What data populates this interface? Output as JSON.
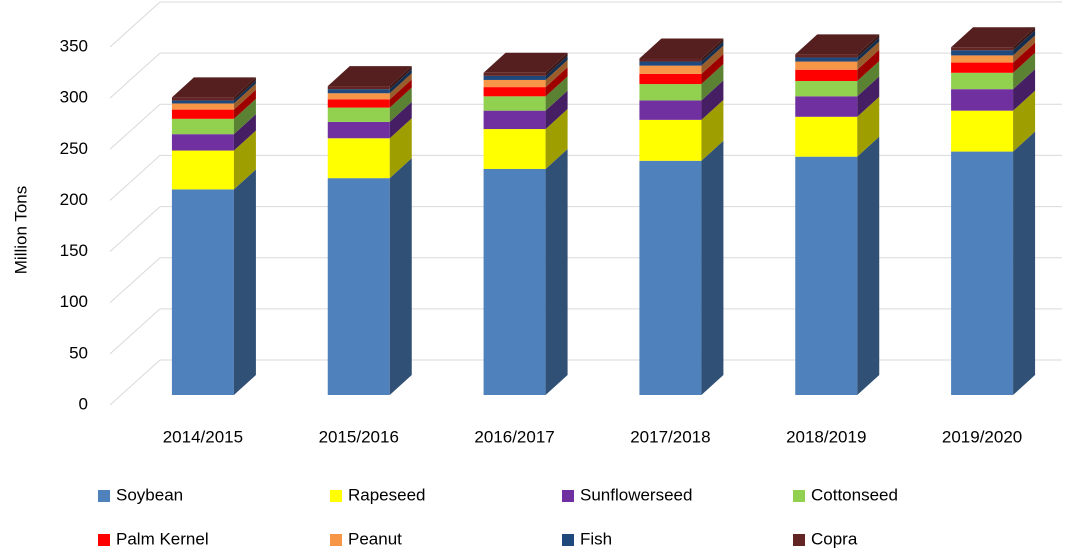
{
  "chart_data": {
    "type": "bar3d_stacked",
    "y_label": "Million Tons",
    "categories": [
      "2014/2015",
      "2015/2016",
      "2016/2017",
      "2017/2018",
      "2018/2019",
      "2019/2020"
    ],
    "ylim": [
      0,
      350
    ],
    "yticks": [
      0,
      50,
      100,
      150,
      200,
      250,
      300,
      350
    ],
    "grid": true,
    "legend": "bottom",
    "series": [
      {
        "name": "Soybean",
        "color": "#4f81bd",
        "values": [
          201,
          212,
          221,
          229,
          233,
          238
        ]
      },
      {
        "name": "Rapeseed",
        "color": "#ffff00",
        "values": [
          38,
          39,
          39,
          40,
          39,
          40
        ]
      },
      {
        "name": "Sunflowerseed",
        "color": "#7030a0",
        "values": [
          16,
          16,
          18,
          19,
          20,
          21
        ]
      },
      {
        "name": "Cottonseed",
        "color": "#92d050",
        "values": [
          15,
          14,
          14,
          16,
          15,
          16
        ]
      },
      {
        "name": "Palm Kernel",
        "color": "#ff0000",
        "values": [
          9,
          8,
          9,
          10,
          11,
          10
        ]
      },
      {
        "name": "Peanut",
        "color": "#f79646",
        "values": [
          6,
          6,
          7,
          8,
          8,
          7
        ]
      },
      {
        "name": "Fish",
        "color": "#1f497d",
        "values": [
          3,
          4,
          4,
          4,
          4,
          5
        ]
      },
      {
        "name": "Copra",
        "color": "#632523",
        "values": [
          3,
          3,
          3,
          3,
          3,
          3
        ]
      }
    ]
  }
}
